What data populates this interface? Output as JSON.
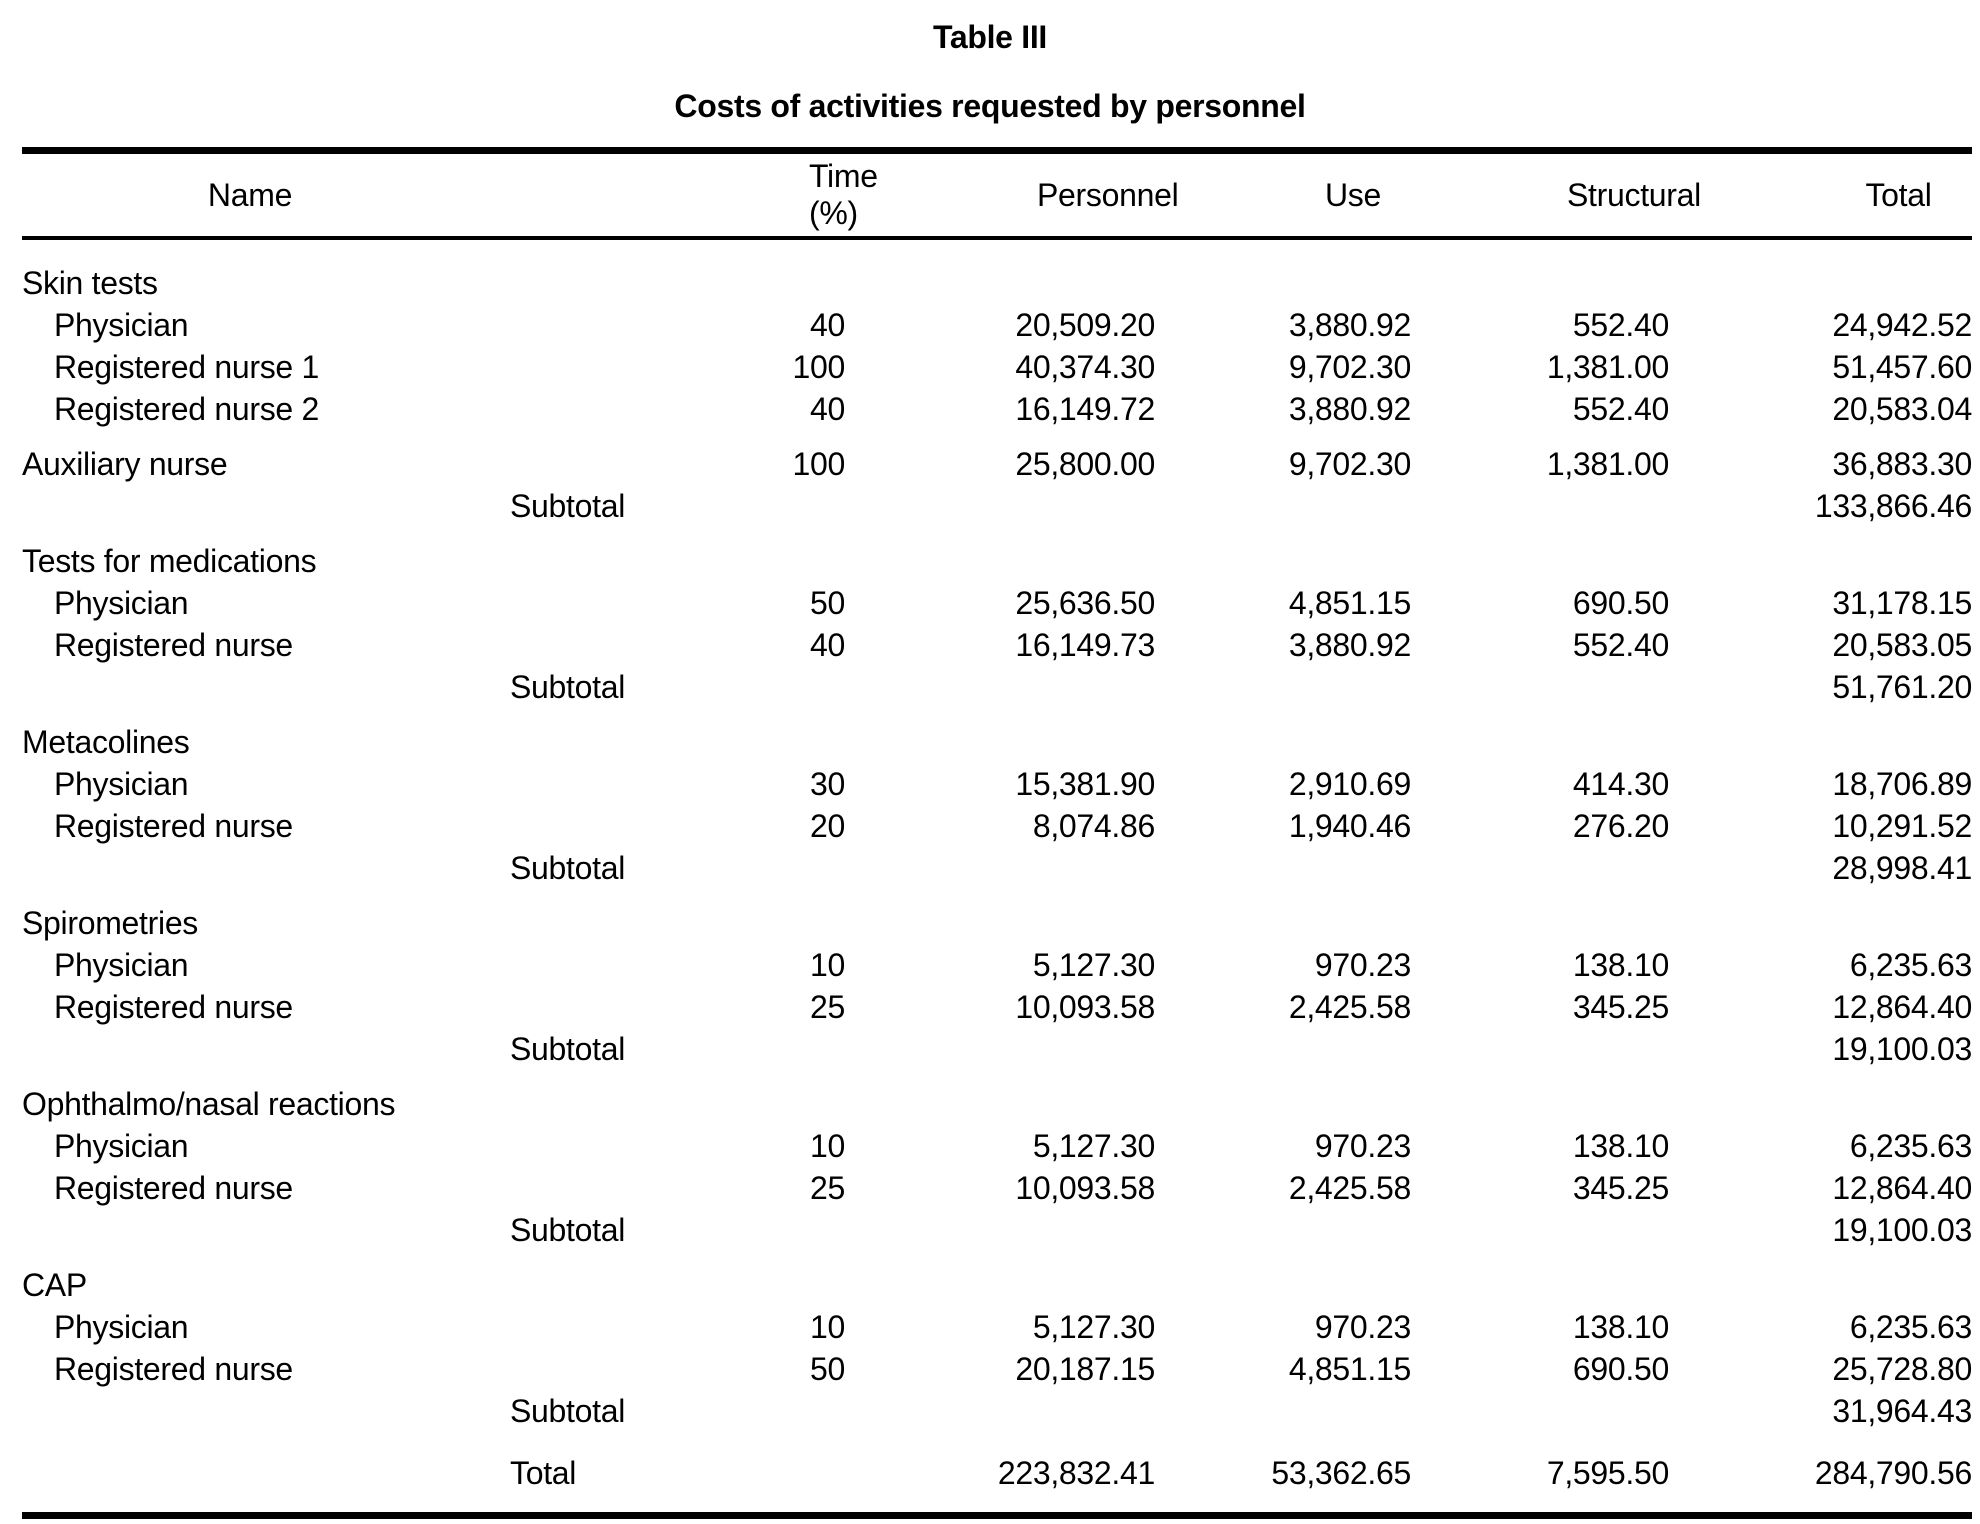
{
  "title": "Table III",
  "subtitle": "Costs of activities requested by personnel",
  "table": {
    "columns": [
      "Name",
      "Time (%)",
      "Personnel",
      "Use",
      "Structural",
      "Total"
    ],
    "rows": [
      {
        "type": "section",
        "name": "Skin tests"
      },
      {
        "type": "member",
        "name": "Physician",
        "time": "40",
        "personnel": "20,509.20",
        "use": "3,880.92",
        "structural": "552.40",
        "total": "24,942.52"
      },
      {
        "type": "member",
        "name": "Registered nurse 1",
        "time": "100",
        "personnel": "40,374.30",
        "use": "9,702.30",
        "structural": "1,381.00",
        "total": "51,457.60"
      },
      {
        "type": "member",
        "name": "Registered nurse 2",
        "time": "40",
        "personnel": "16,149.72",
        "use": "3,880.92",
        "structural": "552.40",
        "total": "20,583.04"
      },
      {
        "type": "member_flush",
        "gap": true,
        "name": "Auxiliary nurse",
        "time": "100",
        "personnel": "25,800.00",
        "use": "9,702.30",
        "structural": "1,381.00",
        "total": "36,883.30"
      },
      {
        "type": "subtotal",
        "label": "Subtotal",
        "total": "133,866.46"
      },
      {
        "type": "section",
        "gap": true,
        "name": "Tests for medications"
      },
      {
        "type": "member",
        "name": "Physician",
        "time": "50",
        "personnel": "25,636.50",
        "use": "4,851.15",
        "structural": "690.50",
        "total": "31,178.15"
      },
      {
        "type": "member",
        "name": "Registered nurse",
        "time": "40",
        "personnel": "16,149.73",
        "use": "3,880.92",
        "structural": "552.40",
        "total": "20,583.05"
      },
      {
        "type": "subtotal",
        "label": "Subtotal",
        "total": "51,761.20"
      },
      {
        "type": "section",
        "gap": true,
        "name": "Metacolines"
      },
      {
        "type": "member",
        "name": "Physician",
        "time": "30",
        "personnel": "15,381.90",
        "use": "2,910.69",
        "structural": "414.30",
        "total": "18,706.89"
      },
      {
        "type": "member",
        "name": "Registered nurse",
        "time": "20",
        "personnel": "8,074.86",
        "use": "1,940.46",
        "structural": "276.20",
        "total": "10,291.52"
      },
      {
        "type": "subtotal",
        "label": "Subtotal",
        "total": "28,998.41"
      },
      {
        "type": "section",
        "gap": true,
        "name": "Spirometries"
      },
      {
        "type": "member",
        "name": "Physician",
        "time": "10",
        "personnel": "5,127.30",
        "use": "970.23",
        "structural": "138.10",
        "total": "6,235.63"
      },
      {
        "type": "member",
        "name": "Registered nurse",
        "time": "25",
        "personnel": "10,093.58",
        "use": "2,425.58",
        "structural": "345.25",
        "total": "12,864.40"
      },
      {
        "type": "subtotal",
        "label": "Subtotal",
        "total": "19,100.03"
      },
      {
        "type": "section",
        "gap": true,
        "name": "Ophthalmo/nasal reactions"
      },
      {
        "type": "member",
        "name": "Physician",
        "time": "10",
        "personnel": "5,127.30",
        "use": "970.23",
        "structural": "138.10",
        "total": "6,235.63"
      },
      {
        "type": "member",
        "name": "Registered nurse",
        "time": "25",
        "personnel": "10,093.58",
        "use": "2,425.58",
        "structural": "345.25",
        "total": "12,864.40"
      },
      {
        "type": "subtotal",
        "label": "Subtotal",
        "total": "19,100.03"
      },
      {
        "type": "section",
        "gap": true,
        "name": "CAP"
      },
      {
        "type": "member",
        "name": "Physician",
        "time": "10",
        "personnel": "5,127.30",
        "use": "970.23",
        "structural": "138.10",
        "total": "6,235.63"
      },
      {
        "type": "member",
        "name": "Registered nurse",
        "time": "50",
        "personnel": "20,187.15",
        "use": "4,851.15",
        "structural": "690.50",
        "total": "25,728.80"
      },
      {
        "type": "subtotal",
        "label": "Subtotal",
        "total": "31,964.43"
      },
      {
        "type": "grand_total",
        "label": "Total",
        "personnel": "223,832.41",
        "use": "53,362.65",
        "structural": "7,595.50",
        "total": "284,790.56"
      }
    ]
  }
}
